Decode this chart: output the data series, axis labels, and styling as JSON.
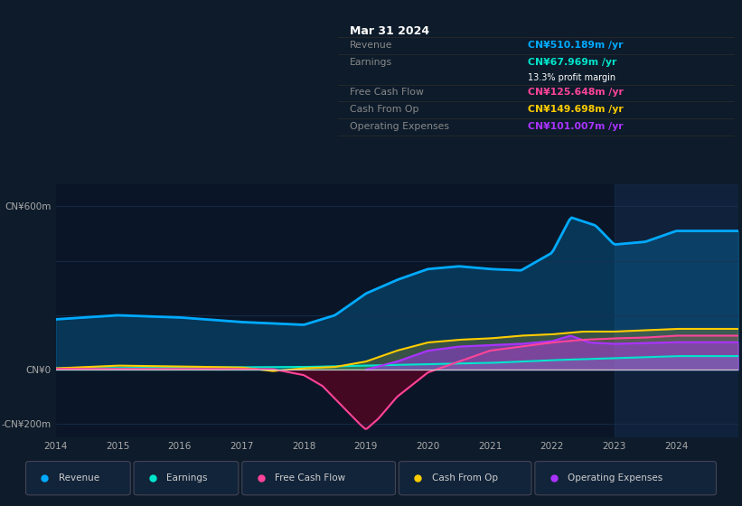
{
  "bg_color": "#0d1b2a",
  "plot_bg_color": "#0a1628",
  "colors": {
    "revenue": "#00aaff",
    "earnings": "#00e5cc",
    "free_cash_flow": "#ff4499",
    "cash_from_op": "#ffcc00",
    "operating_expenses": "#aa33ff"
  },
  "legend_items": [
    "Revenue",
    "Earnings",
    "Free Cash Flow",
    "Cash From Op",
    "Operating Expenses"
  ],
  "legend_colors": [
    "#00aaff",
    "#00e5cc",
    "#ff4499",
    "#ffcc00",
    "#aa33ff"
  ],
  "info_box": {
    "date": "Mar 31 2024",
    "revenue_label": "Revenue",
    "revenue_val": "CN¥510.189m /yr",
    "earnings_label": "Earnings",
    "earnings_val": "CN¥67.969m /yr",
    "profit_margin": "13.3% profit margin",
    "fcf_label": "Free Cash Flow",
    "fcf_val": "CN¥125.648m /yr",
    "cop_label": "Cash From Op",
    "cop_val": "CN¥149.698m /yr",
    "opex_label": "Operating Expenses",
    "opex_val": "CN¥101.007m /yr"
  },
  "ylim": [
    -250,
    680
  ],
  "xlim": [
    0,
    110
  ],
  "grid_color": "#1a3050",
  "zero_line_color": "#cccccc",
  "highlight_x": 99
}
